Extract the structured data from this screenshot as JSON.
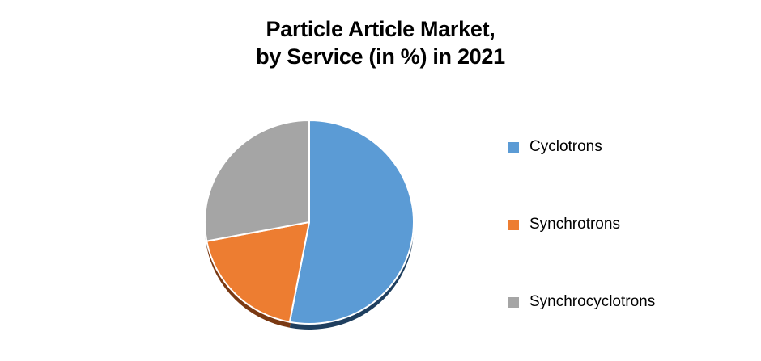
{
  "title": {
    "line1": "Particle Article Market,",
    "line2": "by Service (in %) in 2021"
  },
  "chart_data": {
    "type": "pie",
    "title": "Particle Article Market, by Service (in %) in 2021",
    "categories": [
      "Cyclotrons",
      "Synchrotrons",
      "Synchrocyclotrons"
    ],
    "values": [
      53,
      19,
      28
    ],
    "unit": "%",
    "colors": [
      "#5B9BD5",
      "#ED7D31",
      "#A5A5A5"
    ],
    "side_colors": [
      "#1F3F5F",
      "#7A3913",
      "#6E6E6E"
    ],
    "slice_border_color": "#FFFFFF",
    "start_angle": 0,
    "direction": "clockwise",
    "legend_position": "right",
    "data_labels": false,
    "effect": "3d-bottom-rim"
  }
}
